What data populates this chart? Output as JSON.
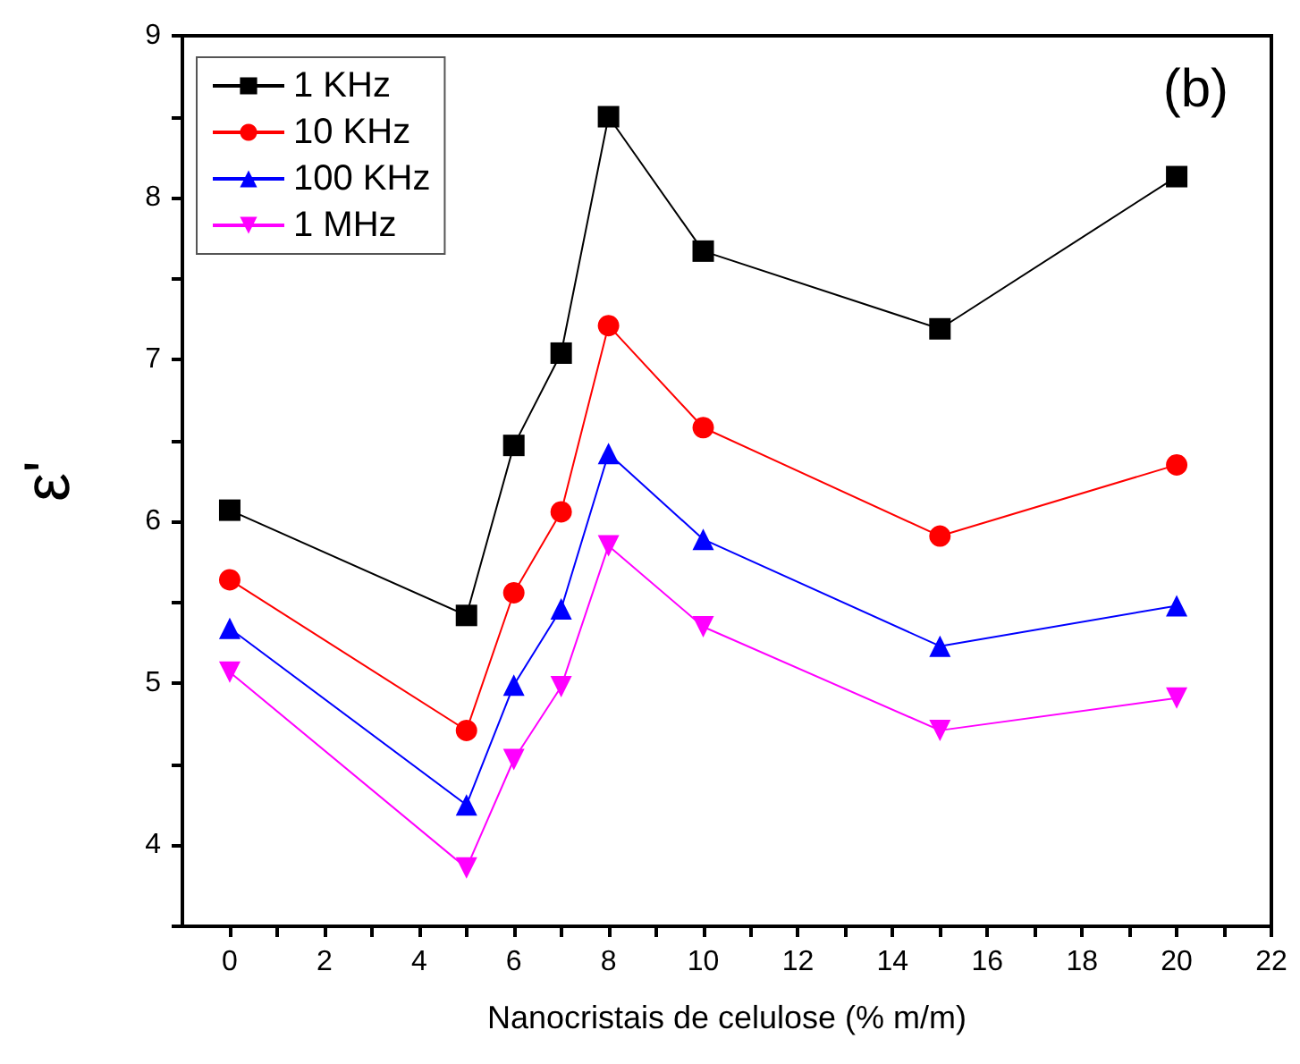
{
  "chart_data": {
    "type": "line",
    "xlabel": "Nanocristais de celulose (% m/m)",
    "ylabel": "ε'",
    "annotations": [
      "(b)"
    ],
    "x": [
      0,
      5,
      6,
      7,
      8,
      10,
      15,
      20
    ],
    "series": [
      {
        "name": "1 KHz",
        "color": "#000000",
        "marker": "square",
        "values": [
          6.07,
          5.42,
          6.47,
          7.04,
          8.5,
          7.67,
          7.19,
          8.13
        ]
      },
      {
        "name": "10 KHz",
        "color": "#ff0000",
        "marker": "circle",
        "values": [
          5.64,
          4.71,
          5.56,
          6.06,
          7.21,
          6.58,
          5.91,
          6.35
        ]
      },
      {
        "name": "100 KHz",
        "color": "#0000ff",
        "marker": "triangle",
        "values": [
          5.34,
          4.25,
          4.99,
          5.46,
          6.42,
          5.89,
          5.23,
          5.48
        ]
      },
      {
        "name": "1 MHz",
        "color": "#ff00ff",
        "marker": "triangle-down",
        "values": [
          5.07,
          3.86,
          4.53,
          4.98,
          5.85,
          5.35,
          4.71,
          4.91
        ]
      }
    ],
    "xlim": [
      -1,
      22
    ],
    "xticks": [
      0,
      {
        "value": 1,
        "label": null
      },
      2,
      {
        "value": 3,
        "label": null
      },
      4,
      {
        "value": 5,
        "label": null
      },
      6,
      {
        "value": 7,
        "label": null
      },
      8,
      {
        "value": 9,
        "label": null
      },
      10,
      {
        "value": 11,
        "label": null
      },
      12,
      {
        "value": 13,
        "label": null
      },
      14,
      {
        "value": 15,
        "label": null
      },
      16,
      {
        "value": 17,
        "label": null
      },
      18,
      {
        "value": 19,
        "label": null
      },
      20,
      {
        "value": 21,
        "label": null
      },
      22
    ],
    "ylim": [
      3.5,
      9
    ],
    "yticks": [
      {
        "value": 3.5,
        "label": null
      },
      4,
      {
        "value": 4.5,
        "label": null
      },
      5,
      {
        "value": 5.5,
        "label": null
      },
      6,
      {
        "value": 6.5,
        "label": null
      },
      7,
      {
        "value": 7.5,
        "label": null
      },
      8,
      {
        "value": 8.5,
        "label": null
      },
      9
    ],
    "grid": false,
    "legend": "top left",
    "line_style": "solid"
  }
}
